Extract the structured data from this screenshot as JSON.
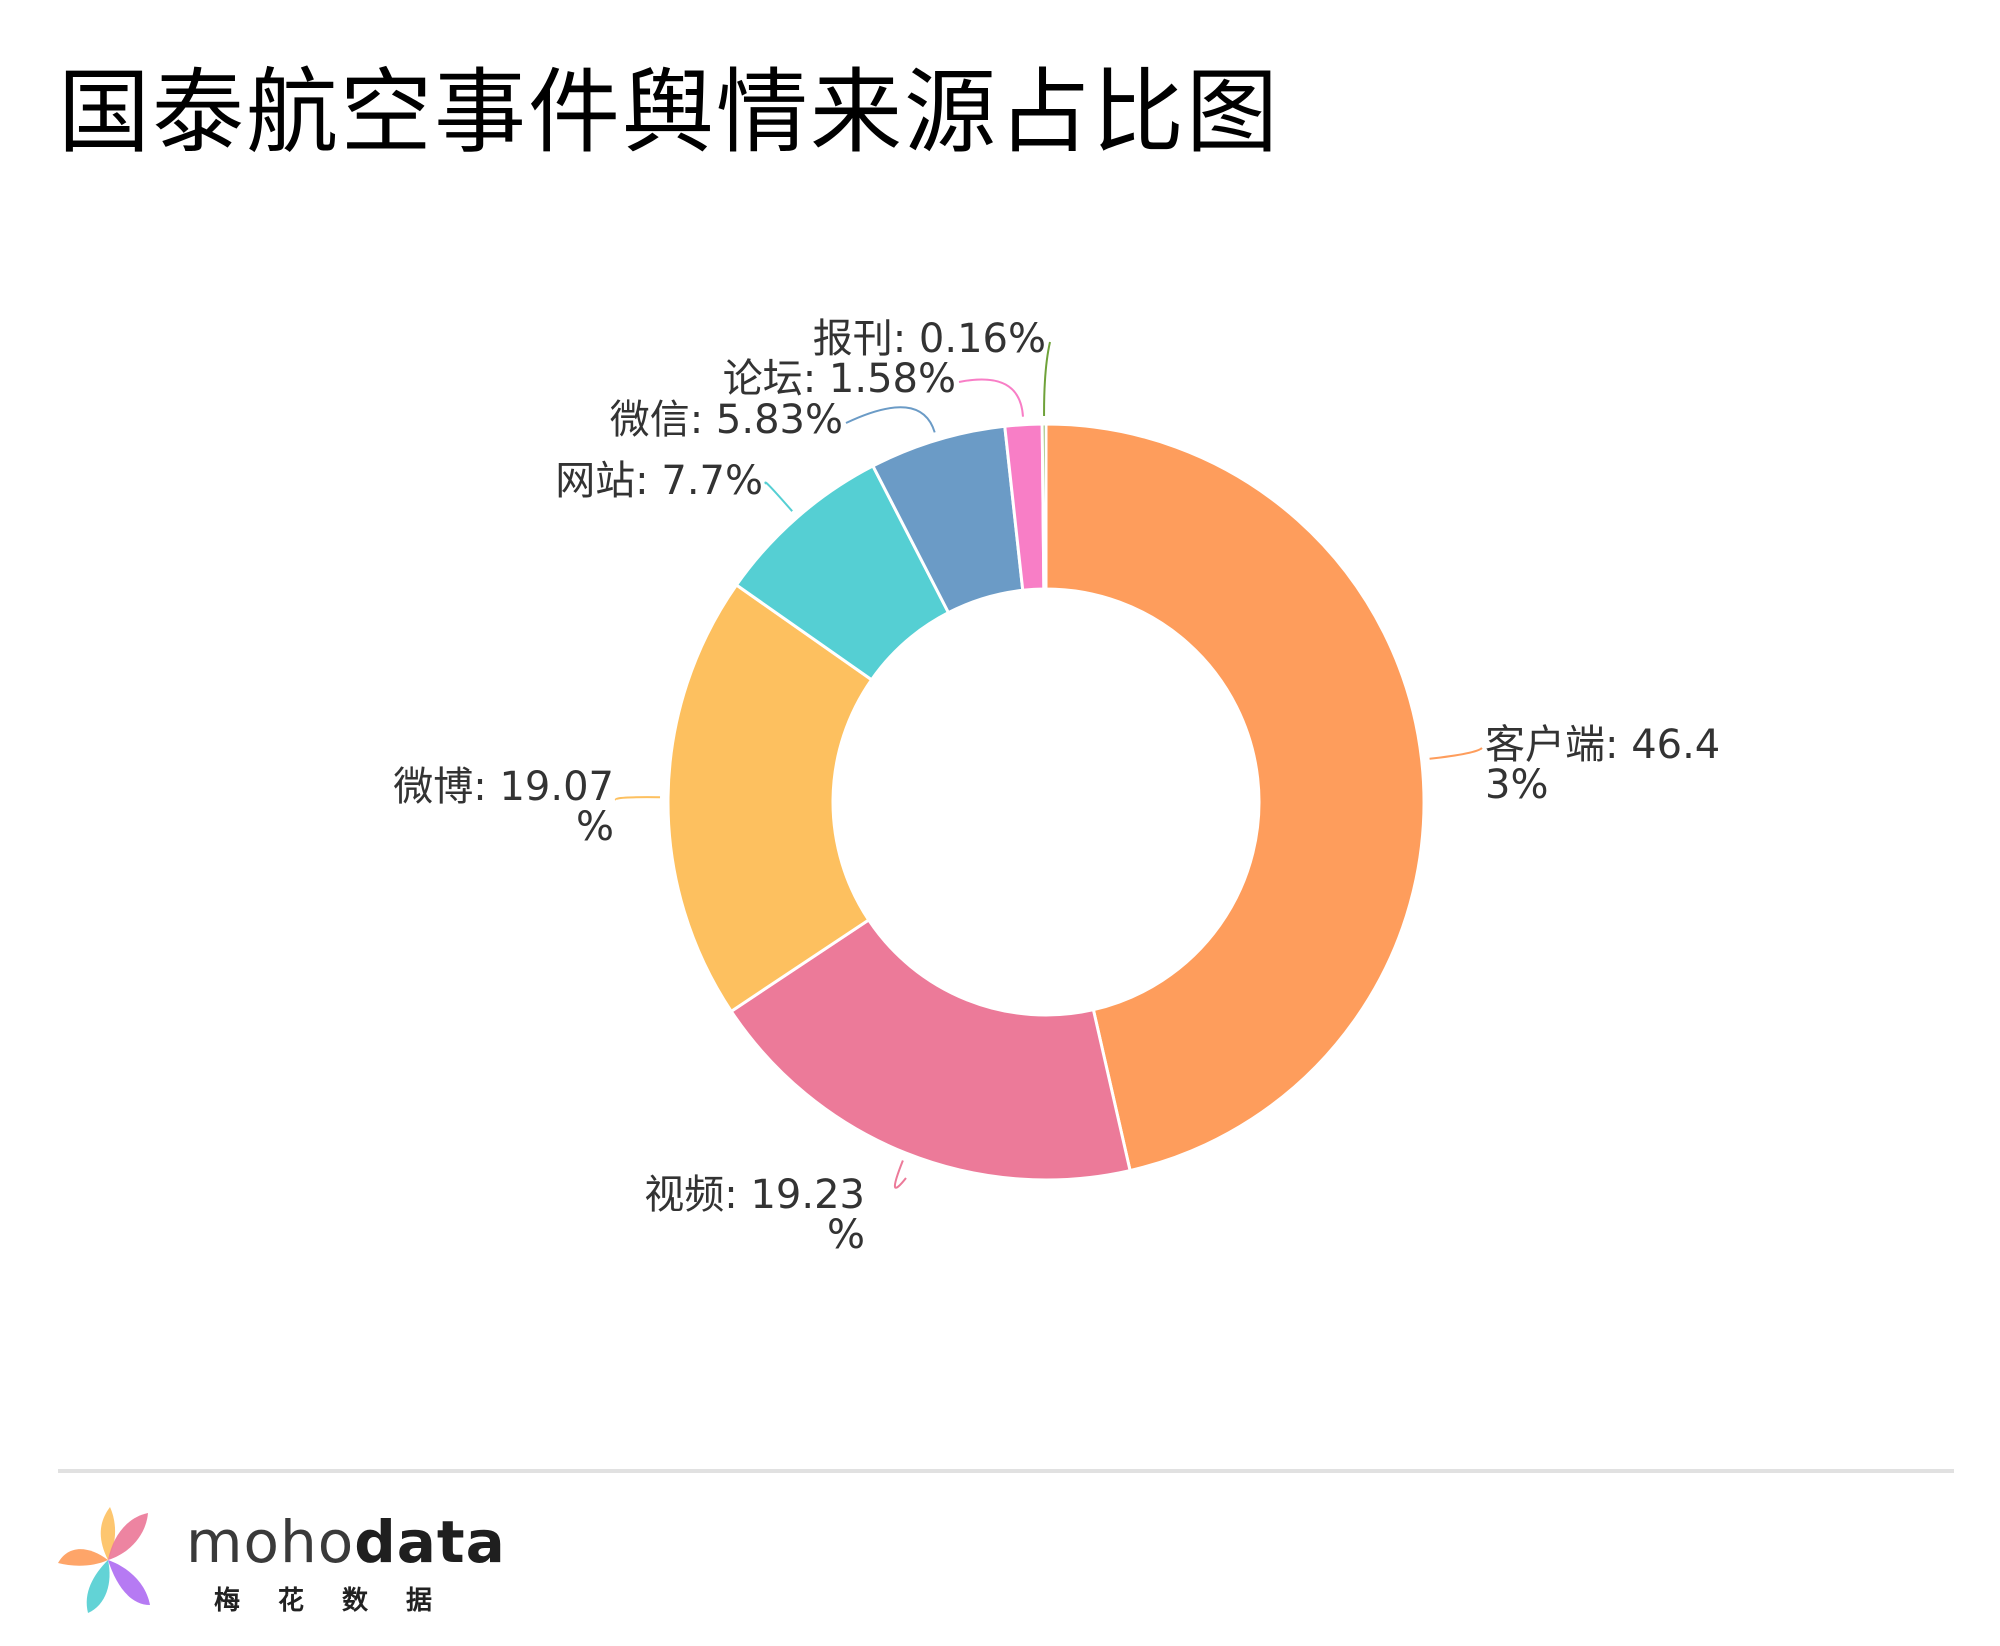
{
  "title": "国泰航空事件舆情来源占比图",
  "chart_data": {
    "type": "pie",
    "donut": true,
    "title": "国泰航空事件舆情来源占比图",
    "categories": [
      "客户端",
      "视频",
      "微博",
      "网站",
      "微信",
      "论坛",
      "报刊"
    ],
    "values": [
      46.43,
      19.23,
      19.07,
      7.7,
      5.83,
      1.58,
      0.16
    ],
    "labels": [
      [
        "客户端: 46.4",
        "3%"
      ],
      [
        "视频: 19.23",
        "%"
      ],
      [
        "微博: 19.07",
        "%"
      ],
      [
        "网站: 7.7%"
      ],
      [
        "微信: 5.83%"
      ],
      [
        "论坛: 1.58%"
      ],
      [
        "报刊: 0.16%"
      ]
    ],
    "colors": [
      "#fe9d5c",
      "#ec7a99",
      "#fdc05f",
      "#55cfd3",
      "#6b9bc6",
      "#f87ec6",
      "#6fa23a"
    ],
    "start_angle": "top",
    "direction": "clockwise"
  },
  "footer": {
    "brand_regular": "moho",
    "brand_bold": "data",
    "brand_cn": "梅花数据"
  },
  "logo_colors": [
    "#fe9d5c",
    "#ec7a99",
    "#55cfd3",
    "#b06ff2"
  ]
}
